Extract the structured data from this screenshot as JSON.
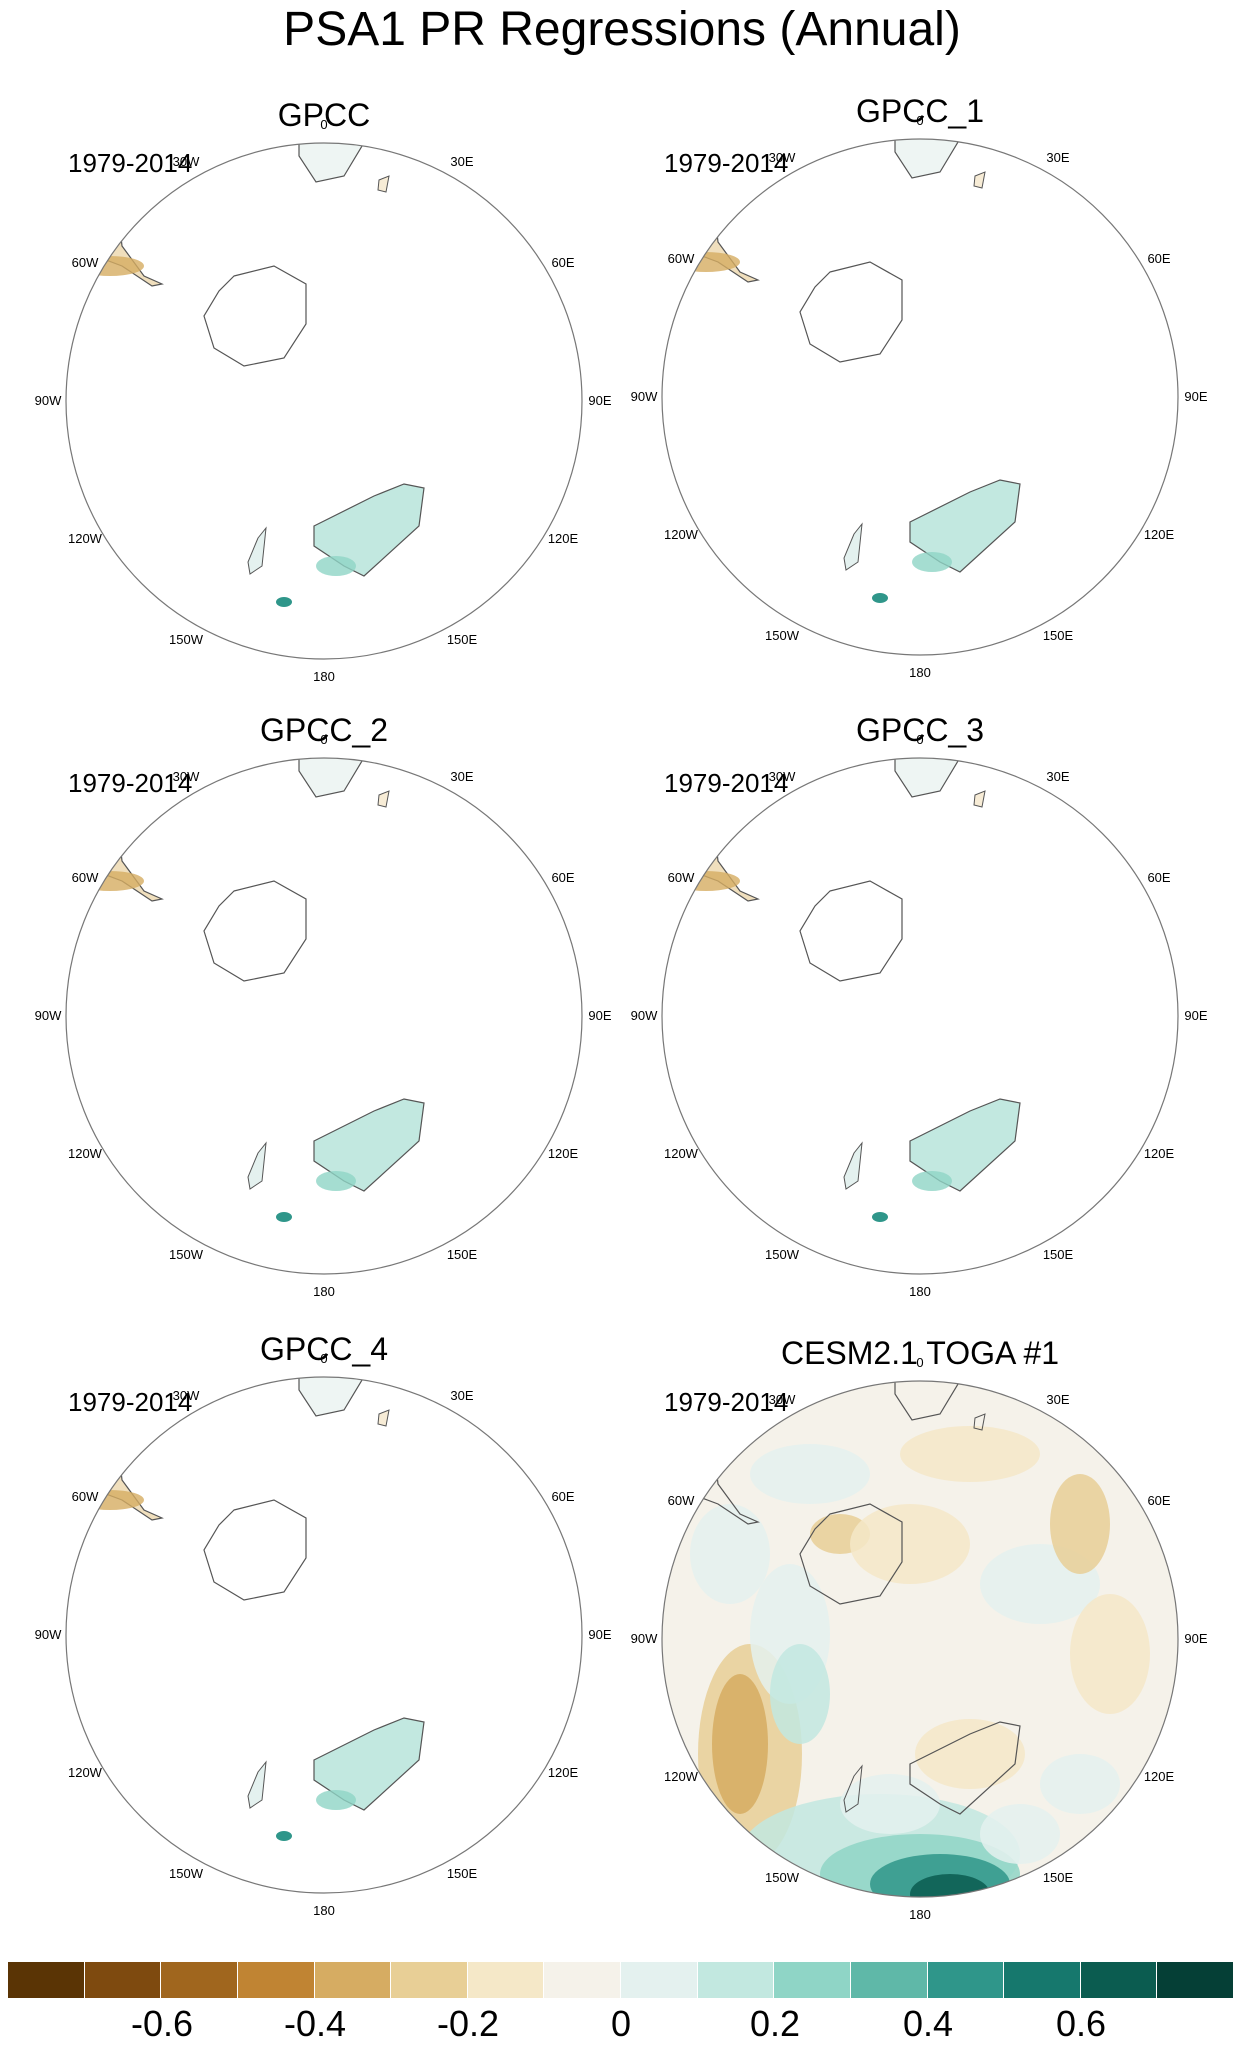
{
  "title": "PSA1 PR Regressions (Annual)",
  "panels": [
    {
      "title": "GPCC",
      "period": "1979-2014",
      "field": "land"
    },
    {
      "title": "GPCC_1",
      "period": "1979-2014",
      "field": "land"
    },
    {
      "title": "GPCC_2",
      "period": "1979-2014",
      "field": "land"
    },
    {
      "title": "GPCC_3",
      "period": "1979-2014",
      "field": "land"
    },
    {
      "title": "GPCC_4",
      "period": "1979-2014",
      "field": "land"
    },
    {
      "title": "CESM2.1 TOGA #1",
      "period": "1979-2014",
      "field": "global"
    }
  ],
  "longitude_labels": [
    "0",
    "30E",
    "60E",
    "90E",
    "120E",
    "150E",
    "180",
    "150W",
    "120W",
    "90W",
    "60W",
    "30W"
  ],
  "colorbar": {
    "colors": [
      "#5a3405",
      "#7e4a0f",
      "#a0661e",
      "#c08433",
      "#d6ac62",
      "#e8cf96",
      "#f5e8c8",
      "#f5f2ea",
      "#e4f1ef",
      "#c2e8e0",
      "#8fd5c6",
      "#5fb8a8",
      "#2f968a",
      "#16786d",
      "#0b5c50",
      "#053f36"
    ],
    "tick_labels": [
      "-0.6",
      "-0.4",
      "-0.2",
      "0",
      "0.2",
      "0.4",
      "0.6"
    ],
    "tick_values": [
      -0.6,
      -0.4,
      -0.2,
      0,
      0.2,
      0.4,
      0.6
    ],
    "bounds": [
      -0.8,
      0.8
    ]
  },
  "colors": {
    "coast": "#555555",
    "circle": "#777777"
  }
}
